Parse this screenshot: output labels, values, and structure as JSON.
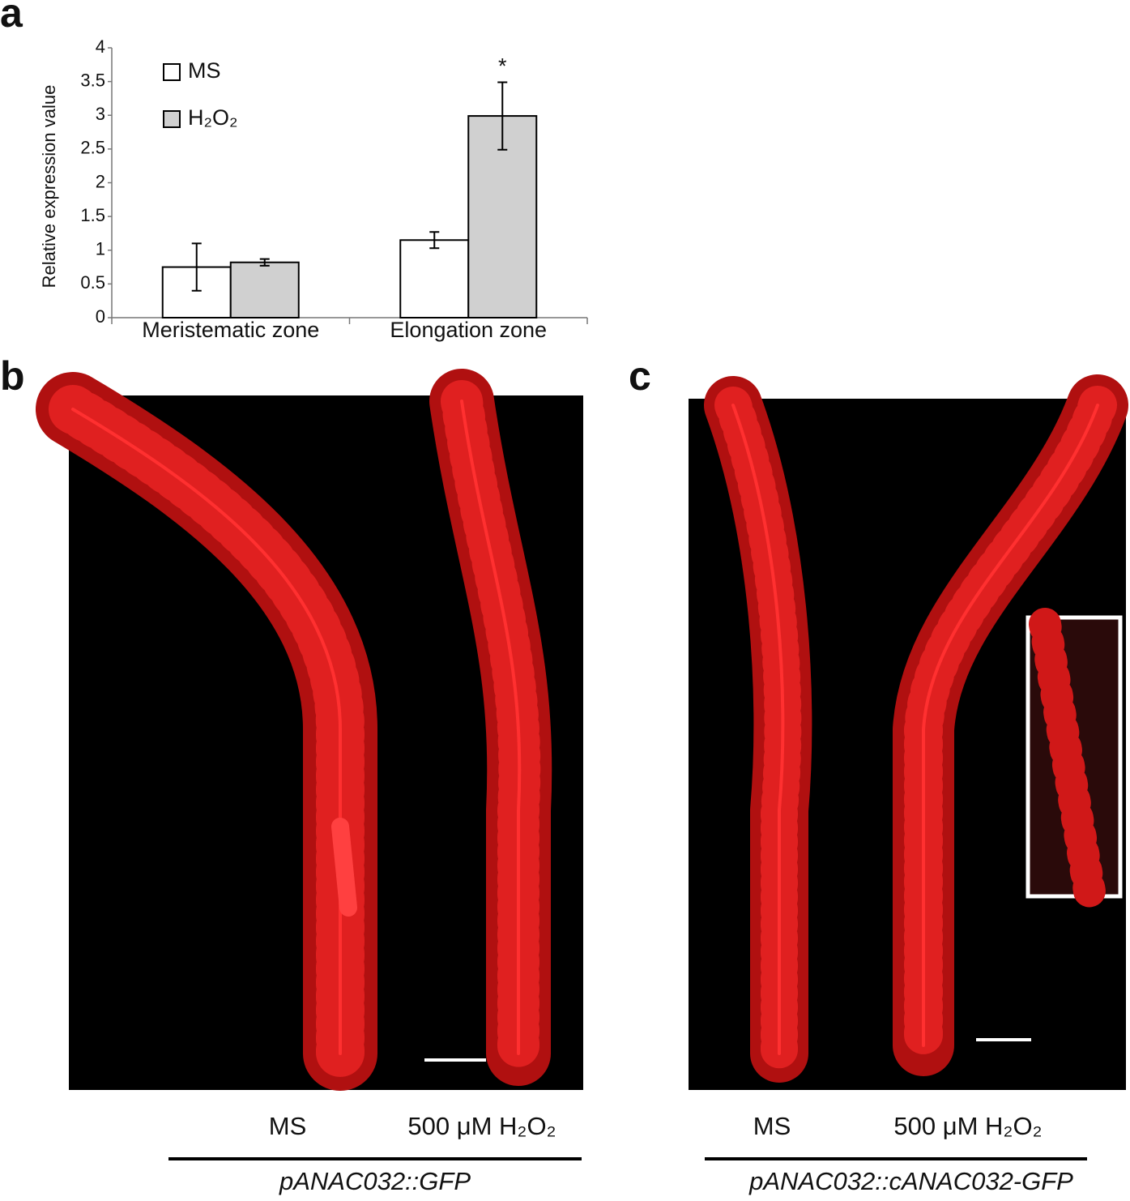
{
  "chart_data": {
    "type": "bar",
    "panel_label": "a",
    "ylabel": "Relative expression value",
    "categories": [
      "Meristematic zone",
      "Elongation zone"
    ],
    "series": [
      {
        "name": "MS",
        "color": "#ffffff",
        "values": [
          0.75,
          1.15
        ],
        "errors": [
          0.35,
          0.12
        ]
      },
      {
        "name": "H₂O₂",
        "color": "#d0d0d0",
        "values": [
          0.82,
          2.99
        ],
        "errors": [
          0.05,
          0.5
        ]
      }
    ],
    "ylim": [
      0,
      4
    ],
    "yticks": [
      0,
      0.5,
      1,
      1.5,
      2,
      2.5,
      3,
      3.5,
      4
    ],
    "annotation": "*"
  },
  "panels": [
    {
      "label": "b",
      "treatments": [
        "MS",
        "500 μM H₂O₂"
      ],
      "construct": "pANAC032::GFP"
    },
    {
      "label": "c",
      "treatments": [
        "MS",
        "500 μM H₂O₂"
      ],
      "construct": "pANAC032::cANAC032-GFP"
    }
  ]
}
